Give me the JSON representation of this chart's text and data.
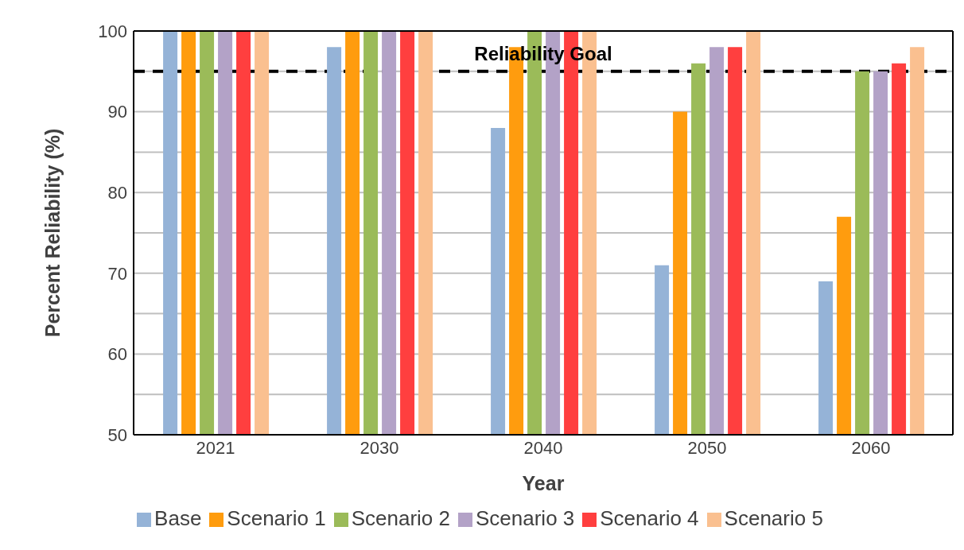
{
  "chart_data": {
    "type": "bar",
    "xlabel": "Year",
    "ylabel": "Percent Reliability (%)",
    "categories": [
      "2021",
      "2030",
      "2040",
      "2050",
      "2060"
    ],
    "series": [
      {
        "name": "Base",
        "color": "#95b3d7",
        "values": [
          100,
          98,
          88,
          71,
          69
        ]
      },
      {
        "name": "Scenario 1",
        "color": "#ff9c0e",
        "values": [
          100,
          100,
          98,
          90,
          77
        ]
      },
      {
        "name": "Scenario 2",
        "color": "#9bbb59",
        "values": [
          100,
          100,
          100,
          96,
          95
        ]
      },
      {
        "name": "Scenario 3",
        "color": "#b3a2c7",
        "values": [
          100,
          100,
          100,
          98,
          95
        ]
      },
      {
        "name": "Scenario 4",
        "color": "#ff3f3f",
        "values": [
          100,
          100,
          100,
          98,
          96
        ]
      },
      {
        "name": "Scenario 5",
        "color": "#fac090",
        "values": [
          100,
          100,
          100,
          100,
          98
        ]
      }
    ],
    "ylim": [
      50,
      100
    ],
    "yticks": [
      50,
      {
        "value": 55,
        "label": null
      },
      60,
      {
        "value": 65,
        "label": null
      },
      70,
      {
        "value": 75,
        "label": null
      },
      80,
      {
        "value": 85,
        "label": null
      },
      90,
      {
        "value": 95,
        "label": null
      },
      100
    ],
    "ref_lines": [
      {
        "axis": "y",
        "value": 95,
        "label": "Reliability Goal",
        "color": "#000000",
        "line_style": "dashed"
      }
    ],
    "grid": "y",
    "legend": "bottom"
  }
}
